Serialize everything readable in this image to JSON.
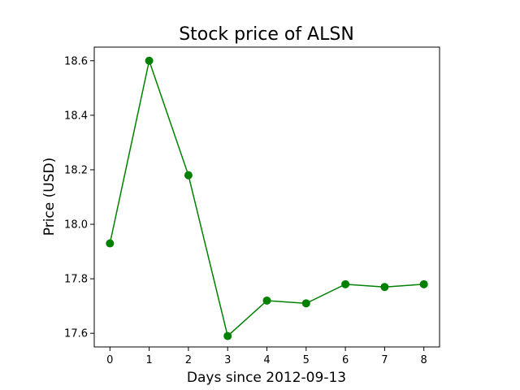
{
  "chart_data": {
    "type": "line",
    "title": "Stock price of ALSN",
    "xlabel": "Days since 2012-09-13",
    "ylabel": "Price (USD)",
    "x": [
      0,
      1,
      2,
      3,
      4,
      5,
      6,
      7,
      8
    ],
    "xticks": [
      "0",
      "1",
      "2",
      "3",
      "4",
      "5",
      "6",
      "7",
      "8"
    ],
    "yticks": [
      "17.6",
      "17.8",
      "18.0",
      "18.2",
      "18.4",
      "18.6"
    ],
    "xlim": [
      -0.4,
      8.4
    ],
    "ylim": [
      17.55,
      18.65
    ],
    "grid": false,
    "series": [
      {
        "values": [
          17.93,
          18.6,
          18.18,
          17.59,
          17.72,
          17.71,
          17.78,
          17.77,
          17.78
        ],
        "color": "#008000",
        "marker": "circle"
      }
    ]
  }
}
